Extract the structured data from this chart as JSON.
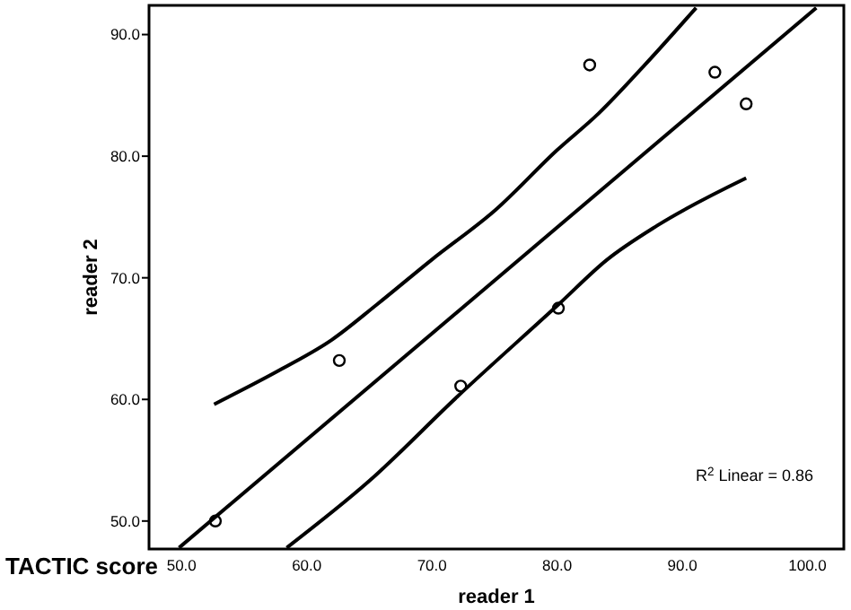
{
  "chart_data": {
    "type": "scatter",
    "xlabel": "reader 1",
    "ylabel": "reader 2",
    "annotations": [
      "TACTIC score",
      "R$^{2}$ Linear = 0.86"
    ],
    "xlim": [
      47.4,
      102.9
    ],
    "ylim": [
      47.7,
      92.4
    ],
    "xticks": [
      {
        "value": 50,
        "label": "50.0"
      },
      {
        "value": 60,
        "label": "60.0"
      },
      {
        "value": 70,
        "label": "70.0"
      },
      {
        "value": 80,
        "label": "80.0"
      },
      {
        "value": 90,
        "label": "90.0"
      },
      {
        "value": 100,
        "label": "100.0"
      }
    ],
    "yticks": [
      {
        "value": 50,
        "label": "50.0"
      },
      {
        "value": 60,
        "label": "60.0"
      },
      {
        "value": 70,
        "label": "70.0"
      },
      {
        "value": 80,
        "label": "80.0"
      },
      {
        "value": 90,
        "label": "90.0"
      }
    ],
    "grid": false,
    "line_style": "solid",
    "series": [
      {
        "marker": "circle",
        "color": "#000000",
        "x": [
          52.7,
          62.6,
          72.3,
          80.1,
          82.6,
          92.6,
          95.1
        ],
        "values": [
          50.0,
          63.2,
          61.1,
          67.5,
          87.5,
          86.9,
          84.3
        ]
      },
      {
        "type": "line",
        "marker": "none",
        "color": "#000000",
        "x": [
          49.8,
          100.7
        ],
        "values": [
          47.8,
          92.2
        ]
      },
      {
        "type": "line",
        "marker": "none",
        "color": "#000000",
        "x": [
          52.6,
          58.0,
          62.0,
          65.6,
          70.0,
          75.1,
          80.0,
          83.3,
          87.0,
          91.1
        ],
        "values": [
          59.6,
          62.5,
          64.9,
          67.8,
          71.5,
          75.6,
          80.5,
          83.5,
          87.5,
          92.2
        ]
      },
      {
        "type": "line",
        "marker": "none",
        "color": "#000000",
        "x": [
          58.4,
          65.0,
          72.0,
          80.1,
          84.0,
          88.0,
          95.1
        ],
        "values": [
          47.8,
          53.3,
          60.2,
          67.8,
          71.5,
          74.3,
          78.2
        ]
      }
    ]
  }
}
